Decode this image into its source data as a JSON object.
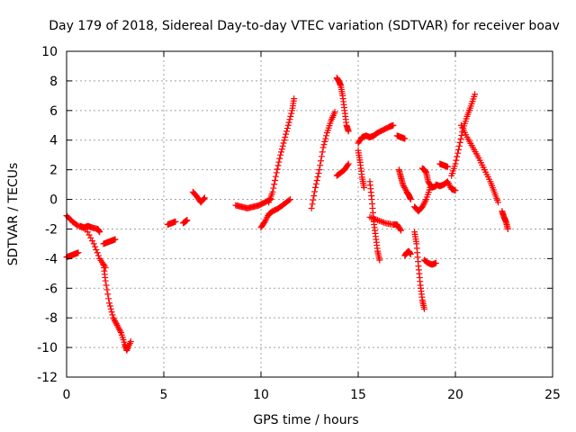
{
  "chart_data": {
    "type": "scatter",
    "title": "Day 179 of 2018, Sidereal Day-to-day VTEC variation (SDTVAR) for receiver boav",
    "xlabel": "GPS time / hours",
    "ylabel": "SDTVAR / TECUs",
    "xlim": [
      0,
      25
    ],
    "ylim": [
      -12,
      10
    ],
    "xticks": [
      0,
      5,
      10,
      15,
      20,
      25
    ],
    "yticks": [
      -12,
      -10,
      -8,
      -6,
      -4,
      -2,
      0,
      2,
      4,
      6,
      8,
      10
    ],
    "grid": true,
    "marker": "+",
    "color": "#ff0000",
    "segments": [
      {
        "x": [
          0.0,
          0.3,
          0.6,
          1.0,
          1.4,
          1.7,
          2.0
        ],
        "y": [
          -1.1,
          -1.5,
          -1.8,
          -2.0,
          -3.0,
          -4.0,
          -4.6
        ]
      },
      {
        "x": [
          0.0,
          0.2,
          0.4,
          0.6
        ],
        "y": [
          -3.9,
          -3.8,
          -3.7,
          -3.6
        ]
      },
      {
        "x": [
          0.7,
          0.9,
          1.1,
          1.3,
          1.6,
          1.7
        ],
        "y": [
          -1.8,
          -1.9,
          -1.8,
          -1.9,
          -2.0,
          -2.2
        ]
      },
      {
        "x": [
          1.9,
          2.0,
          2.2,
          2.4,
          2.6,
          2.8,
          3.0,
          3.1,
          3.3
        ],
        "y": [
          -4.4,
          -5.5,
          -7.0,
          -8.0,
          -8.5,
          -9.0,
          -9.8,
          -10.2,
          -9.6
        ]
      },
      {
        "x": [
          1.9,
          2.1,
          2.3,
          2.5
        ],
        "y": [
          -3.0,
          -2.9,
          -2.8,
          -2.7
        ]
      },
      {
        "x": [
          5.2,
          5.4,
          5.6
        ],
        "y": [
          -1.7,
          -1.6,
          -1.5
        ]
      },
      {
        "x": [
          6.0,
          6.1,
          6.2
        ],
        "y": [
          -1.6,
          -1.5,
          -1.4
        ]
      },
      {
        "x": [
          6.5,
          6.7,
          6.9,
          7.1
        ],
        "y": [
          0.5,
          0.2,
          -0.2,
          0.1
        ]
      },
      {
        "x": [
          8.7,
          9.0,
          9.3,
          9.6,
          9.9,
          10.2,
          10.5
        ],
        "y": [
          -0.4,
          -0.5,
          -0.6,
          -0.5,
          -0.4,
          -0.2,
          0.0
        ]
      },
      {
        "x": [
          10.0,
          10.2,
          10.4,
          10.6,
          10.9,
          11.2,
          11.5
        ],
        "y": [
          -1.9,
          -1.5,
          -1.0,
          -0.8,
          -0.6,
          -0.3,
          0.0
        ]
      },
      {
        "x": [
          10.4,
          10.6,
          10.8,
          11.0,
          11.2,
          11.4,
          11.6,
          11.7
        ],
        "y": [
          -0.2,
          0.5,
          1.8,
          3.0,
          4.0,
          5.0,
          6.0,
          6.8
        ]
      },
      {
        "x": [
          12.6,
          12.8,
          13.0,
          13.2,
          13.4,
          13.6,
          13.8
        ],
        "y": [
          -0.6,
          0.8,
          2.0,
          3.5,
          4.5,
          5.3,
          5.9
        ]
      },
      {
        "x": [
          13.9,
          14.0,
          14.1,
          14.2,
          14.3,
          14.4,
          14.5
        ],
        "y": [
          8.2,
          8.0,
          7.7,
          7.0,
          6.0,
          5.0,
          4.6
        ]
      },
      {
        "x": [
          13.9,
          14.1,
          14.3,
          14.5
        ],
        "y": [
          1.6,
          1.8,
          2.0,
          2.4
        ]
      },
      {
        "x": [
          15.0,
          15.1,
          15.2,
          15.3
        ],
        "y": [
          3.3,
          2.5,
          1.5,
          0.8
        ]
      },
      {
        "x": [
          15.0,
          15.2,
          15.4,
          15.6,
          15.8,
          16.0,
          16.3,
          16.6,
          16.8
        ],
        "y": [
          3.8,
          4.2,
          4.3,
          4.2,
          4.3,
          4.5,
          4.7,
          4.9,
          5.0
        ]
      },
      {
        "x": [
          15.6,
          15.7,
          15.8,
          15.9,
          16.0,
          16.1
        ],
        "y": [
          1.2,
          0.0,
          -1.5,
          -2.5,
          -3.5,
          -4.1
        ]
      },
      {
        "x": [
          15.6,
          16.0,
          16.4,
          16.8,
          17.0,
          17.2
        ],
        "y": [
          -1.2,
          -1.4,
          -1.6,
          -1.7,
          -1.7,
          -2.1
        ]
      },
      {
        "x": [
          17.1,
          17.2,
          17.3,
          17.5,
          17.6,
          17.7
        ],
        "y": [
          2.0,
          1.5,
          1.0,
          0.5,
          0.3,
          0.0
        ]
      },
      {
        "x": [
          17.0,
          17.2,
          17.4
        ],
        "y": [
          4.3,
          4.2,
          4.1
        ]
      },
      {
        "x": [
          17.4,
          17.5,
          17.6,
          17.7
        ],
        "y": [
          -3.8,
          -3.6,
          -3.5,
          -3.7
        ]
      },
      {
        "x": [
          17.9,
          18.0,
          18.1,
          18.2,
          18.3,
          18.4
        ],
        "y": [
          -2.2,
          -3.0,
          -4.5,
          -5.8,
          -6.8,
          -7.4
        ]
      },
      {
        "x": [
          17.9,
          18.1,
          18.3,
          18.5,
          18.7
        ],
        "y": [
          -0.5,
          -0.8,
          -0.5,
          0.0,
          0.8
        ]
      },
      {
        "x": [
          18.3,
          18.4,
          18.5,
          18.6,
          18.8,
          19.0
        ],
        "y": [
          2.1,
          2.0,
          1.8,
          1.2,
          0.8,
          0.9
        ]
      },
      {
        "x": [
          18.4,
          18.6,
          18.8,
          19.0
        ],
        "y": [
          -4.1,
          -4.3,
          -4.4,
          -4.3
        ]
      },
      {
        "x": [
          19.0,
          19.2,
          19.4,
          19.6,
          19.8,
          20.0
        ],
        "y": [
          1.0,
          0.9,
          1.0,
          1.2,
          0.7,
          0.6
        ]
      },
      {
        "x": [
          19.2,
          19.4,
          19.6
        ],
        "y": [
          2.4,
          2.3,
          2.2
        ]
      },
      {
        "x": [
          19.8,
          20.0,
          20.2,
          20.4,
          20.6,
          20.8,
          21.0
        ],
        "y": [
          1.6,
          2.4,
          3.6,
          4.8,
          5.6,
          6.3,
          7.1
        ]
      },
      {
        "x": [
          20.3,
          20.6,
          20.9,
          21.2,
          21.5,
          21.8,
          22.0,
          22.2
        ],
        "y": [
          5.0,
          4.2,
          3.5,
          2.8,
          2.0,
          1.2,
          0.5,
          -0.2
        ]
      },
      {
        "x": [
          22.4,
          22.5,
          22.6,
          22.7
        ],
        "y": [
          -0.8,
          -1.2,
          -1.5,
          -2.0
        ]
      }
    ]
  }
}
